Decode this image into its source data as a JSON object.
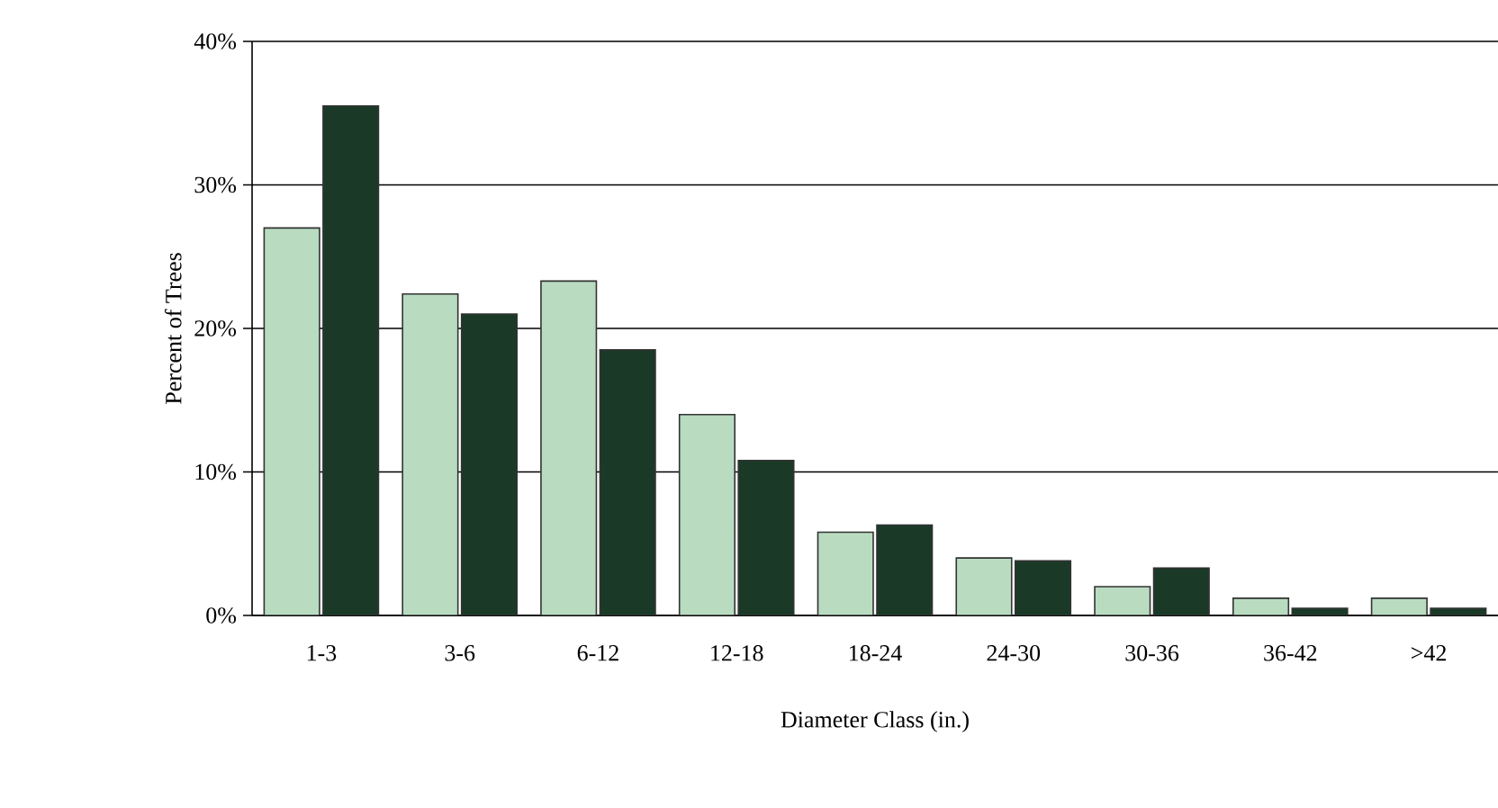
{
  "chart_data": {
    "type": "bar",
    "xlabel": "Diameter Class (in.)",
    "ylabel": "Percent of Trees",
    "categories": [
      "1-3",
      "3-6",
      "6-12",
      "12-18",
      "18-24",
      "24-30",
      "30-36",
      "36-42",
      ">42"
    ],
    "series": [
      {
        "color": "#b9dcc0",
        "values": [
          27.0,
          22.4,
          23.3,
          14.0,
          5.8,
          4.0,
          2.0,
          1.2,
          1.2
        ]
      },
      {
        "color": "#1a3a27",
        "values": [
          35.5,
          21.0,
          18.5,
          10.8,
          6.3,
          3.8,
          3.3,
          0.5,
          0.5
        ]
      }
    ],
    "ylim": [
      0,
      40
    ],
    "yticks": [
      {
        "value": 0,
        "label": "0%"
      },
      {
        "value": 10,
        "label": "10%"
      },
      {
        "value": 20,
        "label": "20%"
      },
      {
        "value": 30,
        "label": "30%"
      },
      {
        "value": 40,
        "label": "40%"
      }
    ],
    "grid": "y"
  }
}
